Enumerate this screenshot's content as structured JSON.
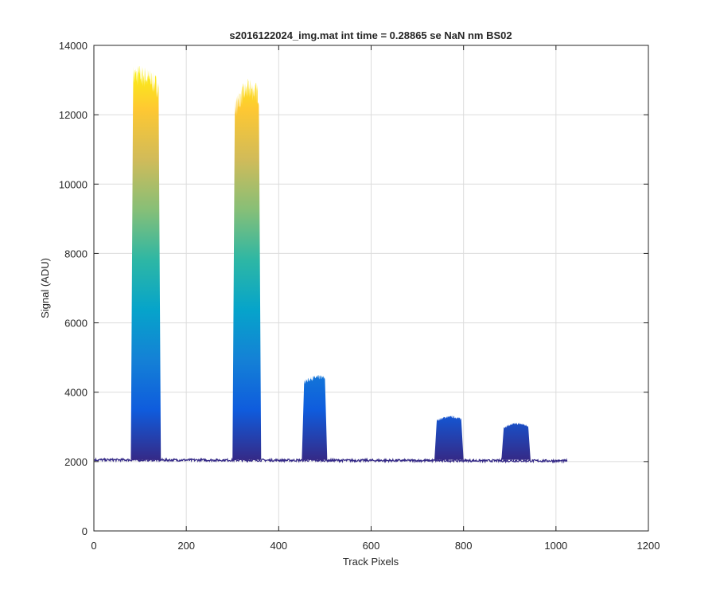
{
  "chart_data": {
    "type": "area",
    "title": "s2016122024_img.mat int time = 0.28865 se  NaN nm BS02",
    "xlabel": "Track Pixels",
    "ylabel": "Signal (ADU)",
    "xlim": [
      0,
      1200
    ],
    "ylim": [
      0,
      14000
    ],
    "xticks": [
      0,
      200,
      400,
      600,
      800,
      1000,
      1200
    ],
    "yticks": [
      0,
      2000,
      4000,
      6000,
      8000,
      10000,
      12000,
      14000
    ],
    "grid": true,
    "baseline": 2050,
    "x_range": [
      0,
      1024
    ],
    "colormap": [
      "#352a87",
      "#0f5cdd",
      "#1481d6",
      "#06a4ca",
      "#2eb7a4",
      "#87bf77",
      "#d1bb59",
      "#fec832",
      "#f9fb0e"
    ],
    "peaks": [
      {
        "x_start": 80,
        "x_end": 145,
        "top_left": 13100,
        "top_max": 13500,
        "top_right": 12700
      },
      {
        "x_start": 300,
        "x_end": 362,
        "top_left": 12000,
        "top_max": 13500,
        "top_right": 12500
      },
      {
        "x_start": 450,
        "x_end": 505,
        "top_left": 4250,
        "top_max": 4600,
        "top_right": 4400
      },
      {
        "x_start": 737,
        "x_end": 800,
        "top_left": 3150,
        "top_max": 3450,
        "top_right": 3200
      },
      {
        "x_start": 882,
        "x_end": 945,
        "top_left": 2950,
        "top_max": 3250,
        "top_right": 3000
      }
    ]
  }
}
